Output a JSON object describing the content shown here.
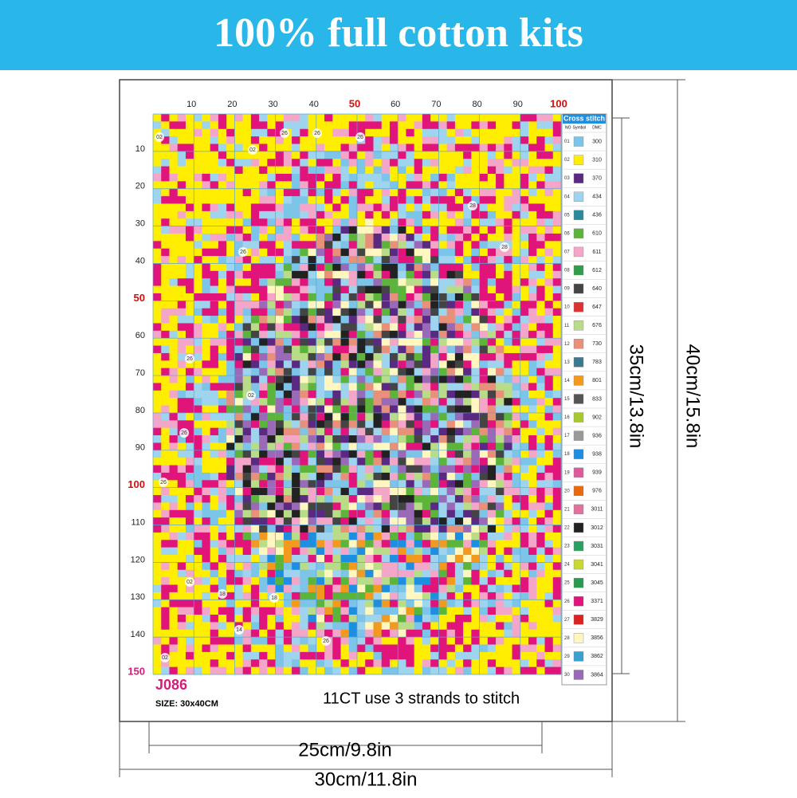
{
  "banner": {
    "title": "100% full cotton kits"
  },
  "pattern": {
    "column_labels": [
      {
        "label": "10",
        "highlight": false
      },
      {
        "label": "20",
        "highlight": false
      },
      {
        "label": "30",
        "highlight": false
      },
      {
        "label": "40",
        "highlight": false
      },
      {
        "label": "50",
        "highlight": true
      },
      {
        "label": "60",
        "highlight": false
      },
      {
        "label": "70",
        "highlight": false
      },
      {
        "label": "80",
        "highlight": false
      },
      {
        "label": "90",
        "highlight": false
      },
      {
        "label": "100",
        "highlight": true
      }
    ],
    "row_labels": [
      {
        "label": "10",
        "highlight": false
      },
      {
        "label": "20",
        "highlight": false
      },
      {
        "label": "30",
        "highlight": false
      },
      {
        "label": "40",
        "highlight": false
      },
      {
        "label": "50",
        "highlight": true
      },
      {
        "label": "60",
        "highlight": false
      },
      {
        "label": "70",
        "highlight": false
      },
      {
        "label": "80",
        "highlight": false
      },
      {
        "label": "90",
        "highlight": false
      },
      {
        "label": "100",
        "highlight": true
      },
      {
        "label": "110",
        "highlight": false
      },
      {
        "label": "120",
        "highlight": false
      },
      {
        "label": "130",
        "highlight": false
      },
      {
        "label": "140",
        "highlight": false
      },
      {
        "label": "150",
        "highlight": true
      }
    ],
    "cell_labels": [
      "02",
      "26",
      "26",
      "26",
      "02",
      "28",
      "28",
      "26",
      "26",
      "02",
      "26",
      "26",
      "02",
      "18",
      "18",
      "14",
      "26",
      "02"
    ]
  },
  "legend": {
    "title": "Cross stitch",
    "headers": [
      "NO",
      "Symbol",
      "DMC"
    ],
    "rows": [
      {
        "no": "01",
        "dmc": "300",
        "color": "#7cc4e8"
      },
      {
        "no": "02",
        "dmc": "310",
        "color": "#ffee00"
      },
      {
        "no": "03",
        "dmc": "370",
        "color": "#5a2a82"
      },
      {
        "no": "04",
        "dmc": "434",
        "color": "#9fd4ee"
      },
      {
        "no": "05",
        "dmc": "436",
        "color": "#2a8a9a"
      },
      {
        "no": "06",
        "dmc": "610",
        "color": "#5cb53a"
      },
      {
        "no": "07",
        "dmc": "611",
        "color": "#f4a6c8"
      },
      {
        "no": "08",
        "dmc": "612",
        "color": "#2e9e4a"
      },
      {
        "no": "09",
        "dmc": "640",
        "color": "#444444"
      },
      {
        "no": "10",
        "dmc": "647",
        "color": "#dd3333"
      },
      {
        "no": "11",
        "dmc": "676",
        "color": "#b8dc88"
      },
      {
        "no": "12",
        "dmc": "730",
        "color": "#e8907a"
      },
      {
        "no": "13",
        "dmc": "783",
        "color": "#3a7a90"
      },
      {
        "no": "14",
        "dmc": "801",
        "color": "#f39a1e"
      },
      {
        "no": "15",
        "dmc": "833",
        "color": "#555555"
      },
      {
        "no": "16",
        "dmc": "902",
        "color": "#a8c830"
      },
      {
        "no": "17",
        "dmc": "936",
        "color": "#999999"
      },
      {
        "no": "18",
        "dmc": "938",
        "color": "#1e8ee0"
      },
      {
        "no": "19",
        "dmc": "939",
        "color": "#e05a9a"
      },
      {
        "no": "20",
        "dmc": "976",
        "color": "#e86a10"
      },
      {
        "no": "21",
        "dmc": "3011",
        "color": "#e070a0"
      },
      {
        "no": "22",
        "dmc": "3012",
        "color": "#222222"
      },
      {
        "no": "23",
        "dmc": "3031",
        "color": "#2aa060"
      },
      {
        "no": "24",
        "dmc": "3041",
        "color": "#c8d830"
      },
      {
        "no": "25",
        "dmc": "3045",
        "color": "#2a9a50"
      },
      {
        "no": "26",
        "dmc": "3371",
        "color": "#e0147a"
      },
      {
        "no": "27",
        "dmc": "3829",
        "color": "#dd2222"
      },
      {
        "no": "28",
        "dmc": "3856",
        "color": "#fff6c0"
      },
      {
        "no": "29",
        "dmc": "3862",
        "color": "#3aa0d0"
      },
      {
        "no": "30",
        "dmc": "3864",
        "color": "#9a6ab8"
      }
    ]
  },
  "footer": {
    "code": "J086",
    "size": "SIZE: 30x40CM",
    "note": "11CT use 3 strands to stitch"
  },
  "dimensions": {
    "inner_height": "35cm/13.8in",
    "outer_height": "40cm/15.8in",
    "inner_width": "25cm/9.8in",
    "outer_width": "30cm/11.8in"
  }
}
